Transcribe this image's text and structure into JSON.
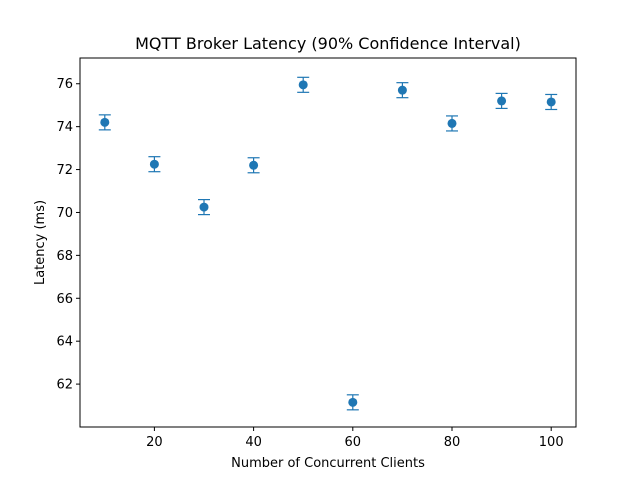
{
  "chart_data": {
    "type": "scatter",
    "title": "MQTT Broker Latency (90% Confidence Interval)",
    "xlabel": "Number of Concurrent Clients",
    "ylabel": "Latency (ms)",
    "xlim": [
      5,
      105
    ],
    "ylim": [
      60.0,
      77.2
    ],
    "xticks": [
      20,
      40,
      60,
      80,
      100
    ],
    "yticks": [
      62,
      64,
      66,
      68,
      70,
      72,
      74,
      76
    ],
    "grid": false,
    "color": "#1f77b4",
    "series": [
      {
        "x": [
          10,
          20,
          30,
          40,
          50,
          60,
          70,
          80,
          90,
          100
        ],
        "y": [
          74.2,
          72.25,
          70.25,
          72.2,
          75.95,
          61.15,
          75.7,
          74.15,
          75.2,
          75.15
        ],
        "err_low": [
          73.85,
          71.9,
          69.9,
          71.85,
          75.6,
          60.8,
          75.35,
          73.8,
          74.85,
          74.8
        ],
        "err_high": [
          74.55,
          72.6,
          70.6,
          72.55,
          76.3,
          61.5,
          76.05,
          74.5,
          75.55,
          75.5
        ]
      }
    ]
  }
}
